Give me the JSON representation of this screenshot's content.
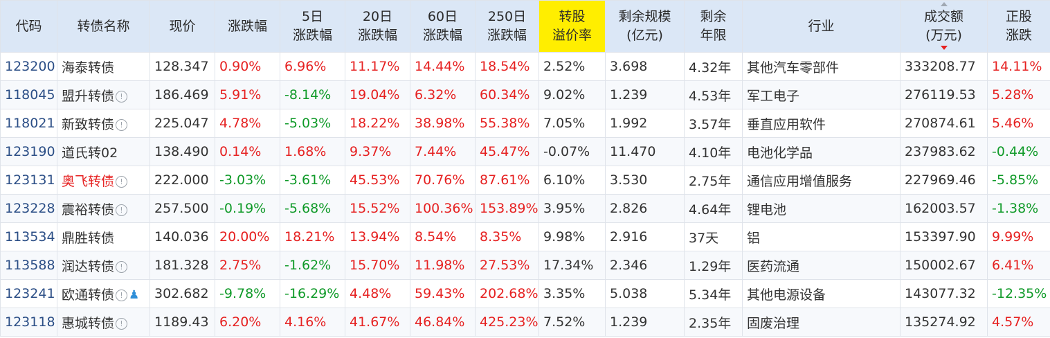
{
  "headers": [
    {
      "lines": [
        "代码"
      ]
    },
    {
      "lines": [
        "转债名称"
      ]
    },
    {
      "lines": [
        "现价"
      ]
    },
    {
      "lines": [
        "涨跌幅"
      ]
    },
    {
      "lines": [
        "5日",
        "涨跌幅"
      ]
    },
    {
      "lines": [
        "20日",
        "涨跌幅"
      ]
    },
    {
      "lines": [
        "60日",
        "涨跌幅"
      ]
    },
    {
      "lines": [
        "250日",
        "涨跌幅"
      ]
    },
    {
      "lines": [
        "转股",
        "溢价率"
      ],
      "highlighted": true
    },
    {
      "lines": [
        "剩余规模",
        "(亿元)"
      ]
    },
    {
      "lines": [
        "剩余",
        "年限"
      ]
    },
    {
      "lines": [
        "行业"
      ]
    },
    {
      "lines": [
        "成交额",
        "(万元)"
      ],
      "sorted": "desc"
    },
    {
      "lines": [
        "正股",
        "涨跌"
      ]
    }
  ],
  "rows": [
    {
      "code": "123200",
      "name": "海泰转债",
      "name_red": false,
      "info_icon": false,
      "user_icon": false,
      "price": "128.347",
      "chg": "0.90%",
      "chg5": "6.96%",
      "chg20": "11.17%",
      "chg60": "14.44%",
      "chg250": "18.54%",
      "premium": "2.52%",
      "scale": "3.698",
      "years": "4.32年",
      "industry": "其他汽车零部件",
      "volume": "333208.77",
      "stock_chg": "14.11%"
    },
    {
      "code": "118045",
      "name": "盟升转债",
      "name_red": false,
      "info_icon": true,
      "user_icon": false,
      "price": "186.469",
      "chg": "5.91%",
      "chg5": "-8.14%",
      "chg20": "19.04%",
      "chg60": "6.32%",
      "chg250": "60.34%",
      "premium": "9.02%",
      "scale": "1.239",
      "years": "4.53年",
      "industry": "军工电子",
      "volume": "276119.53",
      "stock_chg": "5.28%"
    },
    {
      "code": "118021",
      "name": "新致转债",
      "name_red": false,
      "info_icon": true,
      "user_icon": false,
      "price": "225.047",
      "chg": "4.78%",
      "chg5": "-5.03%",
      "chg20": "18.22%",
      "chg60": "38.98%",
      "chg250": "55.38%",
      "premium": "7.05%",
      "scale": "1.992",
      "years": "3.57年",
      "industry": "垂直应用软件",
      "volume": "270874.61",
      "stock_chg": "5.46%"
    },
    {
      "code": "123190",
      "name": "道氏转02",
      "name_red": false,
      "info_icon": false,
      "user_icon": false,
      "price": "138.490",
      "chg": "0.14%",
      "chg5": "1.68%",
      "chg20": "9.37%",
      "chg60": "7.44%",
      "chg250": "45.47%",
      "premium": "-0.07%",
      "scale": "11.470",
      "years": "4.10年",
      "industry": "电池化学品",
      "volume": "237983.62",
      "stock_chg": "-0.44%"
    },
    {
      "code": "123131",
      "name": "奥飞转债",
      "name_red": true,
      "info_icon": true,
      "user_icon": false,
      "price": "222.000",
      "chg": "-3.03%",
      "chg5": "-3.61%",
      "chg20": "45.53%",
      "chg60": "70.76%",
      "chg250": "87.61%",
      "premium": "6.10%",
      "scale": "3.530",
      "years": "2.75年",
      "industry": "通信应用增值服务",
      "volume": "227969.46",
      "stock_chg": "-5.85%"
    },
    {
      "code": "123228",
      "name": "震裕转债",
      "name_red": false,
      "info_icon": true,
      "user_icon": false,
      "price": "257.500",
      "chg": "-0.19%",
      "chg5": "-5.68%",
      "chg20": "15.52%",
      "chg60": "100.36%",
      "chg250": "153.89%",
      "premium": "3.95%",
      "scale": "2.826",
      "years": "4.64年",
      "industry": "锂电池",
      "volume": "162003.57",
      "stock_chg": "-1.38%"
    },
    {
      "code": "113534",
      "name": "鼎胜转债",
      "name_red": false,
      "info_icon": false,
      "user_icon": false,
      "price": "140.036",
      "chg": "20.00%",
      "chg5": "18.21%",
      "chg20": "13.94%",
      "chg60": "8.54%",
      "chg250": "8.35%",
      "premium": "9.98%",
      "scale": "2.916",
      "years": "37天",
      "industry": "铝",
      "volume": "153397.90",
      "stock_chg": "9.99%"
    },
    {
      "code": "113588",
      "name": "润达转债",
      "name_red": false,
      "info_icon": true,
      "user_icon": false,
      "price": "181.328",
      "chg": "2.75%",
      "chg5": "-1.62%",
      "chg20": "15.70%",
      "chg60": "11.98%",
      "chg250": "27.53%",
      "premium": "17.34%",
      "scale": "2.346",
      "years": "1.29年",
      "industry": "医药流通",
      "volume": "150002.67",
      "stock_chg": "6.41%"
    },
    {
      "code": "123241",
      "name": "欧通转债",
      "name_red": false,
      "info_icon": true,
      "user_icon": true,
      "price": "302.682",
      "chg": "-9.78%",
      "chg5": "-16.29%",
      "chg20": "4.48%",
      "chg60": "59.43%",
      "chg250": "202.68%",
      "premium": "3.35%",
      "scale": "5.038",
      "years": "5.34年",
      "industry": "其他电源设备",
      "volume": "143077.32",
      "stock_chg": "-12.35%"
    },
    {
      "code": "123118",
      "name": "惠城转债",
      "name_red": false,
      "info_icon": true,
      "user_icon": false,
      "price": "1189.43",
      "chg": "6.20%",
      "chg5": "4.16%",
      "chg20": "41.67%",
      "chg60": "46.84%",
      "chg250": "425.23%",
      "premium": "7.52%",
      "scale": "1.239",
      "years": "2.35年",
      "industry": "固废治理",
      "volume": "135274.92",
      "stock_chg": "4.57%"
    }
  ],
  "icons": {
    "info": "exclamation-circle-icon",
    "user": "person-icon",
    "sort": "sort-desc-icon"
  },
  "colors": {
    "header_bg": "#dbe7f6",
    "highlight": "#ffee00",
    "up": "#e62121",
    "down": "#0f9a28",
    "code": "#2b4e86"
  }
}
